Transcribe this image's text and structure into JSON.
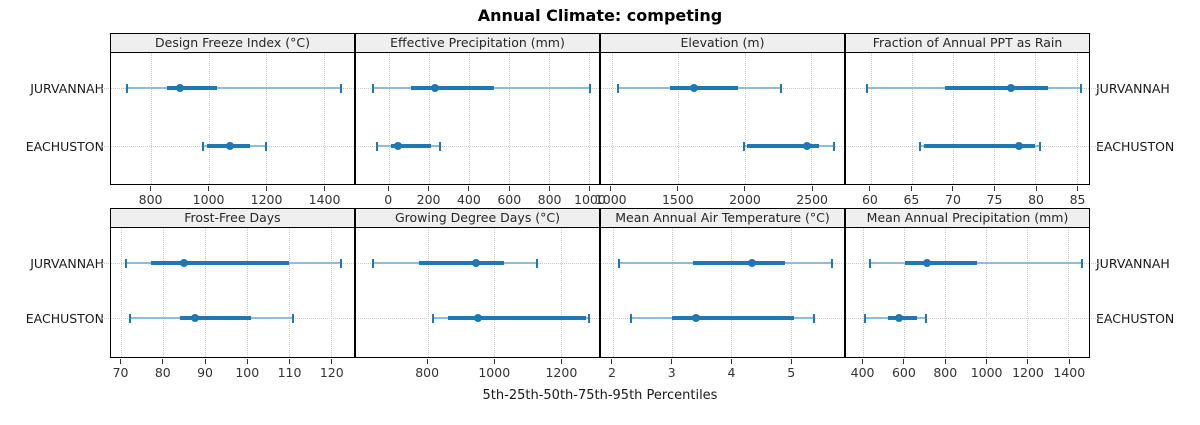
{
  "chart_data": {
    "type": "dot-whisker-lattice",
    "title": "Annual Climate: competing",
    "caption": "5th-25th-50th-75th-95th Percentiles",
    "rows": [
      "JURVANNAH",
      "EACHUSTON"
    ],
    "percentile_levels": [
      5,
      25,
      50,
      75,
      95
    ],
    "layout": {
      "nrow": 2,
      "ncol": 4,
      "grid": "dotted",
      "row_labels_sides": "both"
    },
    "panels": [
      {
        "title": "Design Freeze Index (°C)",
        "ticks": [
          800,
          1000,
          1200,
          1400
        ],
        "xlim": [
          660,
          1505
        ],
        "series": [
          {
            "name": "JURVANNAH",
            "p": [
              715,
              855,
              900,
              1030,
              1460
            ]
          },
          {
            "name": "EACHUSTON",
            "p": [
              980,
              995,
              1075,
              1145,
              1200
            ]
          }
        ]
      },
      {
        "title": "Effective Precipitation (mm)",
        "ticks": [
          0,
          200,
          400,
          600,
          800,
          1000
        ],
        "xlim": [
          -165,
          1050
        ],
        "series": [
          {
            "name": "JURVANNAH",
            "p": [
              -80,
              110,
              230,
              525,
              1005
            ]
          },
          {
            "name": "EACHUSTON",
            "p": [
              -60,
              10,
              45,
              210,
              255
            ]
          }
        ]
      },
      {
        "title": "Elevation (m)",
        "ticks": [
          1000,
          1500,
          2000,
          2500
        ],
        "xlim": [
          920,
          2745
        ],
        "series": [
          {
            "name": "JURVANNAH",
            "p": [
              1050,
              1440,
              1620,
              1950,
              2270
            ]
          },
          {
            "name": "EACHUSTON",
            "p": [
              1995,
              2015,
              2470,
              2560,
              2670
            ]
          }
        ]
      },
      {
        "title": "Fraction of Annual PPT as Rain",
        "ticks": [
          60,
          65,
          70,
          75,
          80,
          85
        ],
        "xlim": [
          57,
          86.5
        ],
        "series": [
          {
            "name": "JURVANNAH",
            "p": [
              59.5,
              69,
              77,
              81.5,
              85.5
            ]
          },
          {
            "name": "EACHUSTON",
            "p": [
              66,
              66.5,
              78,
              80,
              80.5
            ]
          }
        ]
      },
      {
        "title": "Frost-Free Days",
        "ticks": [
          70,
          80,
          90,
          100,
          110,
          120
        ],
        "xlim": [
          67.5,
          125.5
        ],
        "series": [
          {
            "name": "JURVANNAH",
            "p": [
              71,
              77,
              85,
              110,
              122.5
            ]
          },
          {
            "name": "EACHUSTON",
            "p": [
              72,
              84,
              87.5,
              101,
              111
            ]
          }
        ]
      },
      {
        "title": "Growing Degree Days (°C)",
        "ticks": [
          800,
          1000,
          1200
        ],
        "xlim": [
          585,
          1315
        ],
        "series": [
          {
            "name": "JURVANNAH",
            "p": [
              635,
              775,
              945,
              1030,
              1130
            ]
          },
          {
            "name": "EACHUSTON",
            "p": [
              815,
              860,
              950,
              1275,
              1285
            ]
          }
        ]
      },
      {
        "title": "Mean Annual Air Temperature (°C)",
        "ticks": [
          2,
          3,
          4,
          5
        ],
        "xlim": [
          1.8,
          5.9
        ],
        "series": [
          {
            "name": "JURVANNAH",
            "p": [
              2.1,
              3.35,
              4.35,
              4.9,
              5.7
            ]
          },
          {
            "name": "EACHUSTON",
            "p": [
              2.3,
              3.0,
              3.4,
              5.05,
              5.4
            ]
          }
        ]
      },
      {
        "title": "Mean Annual Precipitation (mm)",
        "ticks": [
          400,
          600,
          800,
          1000,
          1200,
          1400
        ],
        "xlim": [
          315,
          1500
        ],
        "series": [
          {
            "name": "JURVANNAH",
            "p": [
              430,
              605,
              710,
              955,
              1465
            ]
          },
          {
            "name": "EACHUSTON",
            "p": [
              410,
              520,
              575,
              660,
              705
            ]
          }
        ]
      }
    ],
    "colors": {
      "line": "#1f77b4",
      "whisker_light": "#8fbcdb",
      "grid": "#c9c9c9",
      "strip_bg": "#efefef",
      "panel_border": "#000000"
    }
  }
}
